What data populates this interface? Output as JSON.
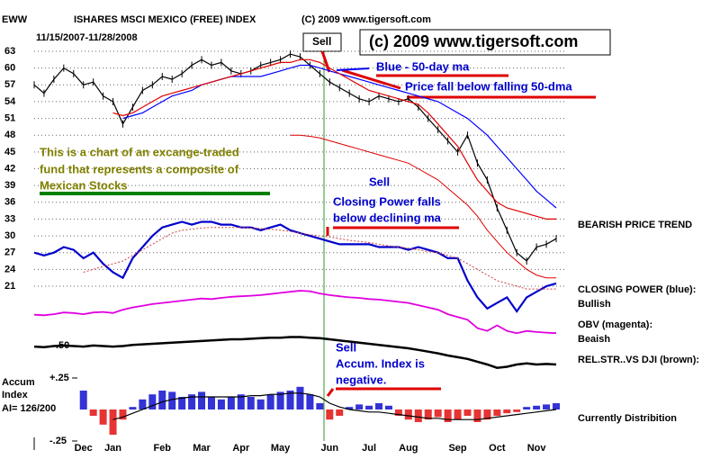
{
  "chart_data": [
    {
      "type": "line",
      "ticker": "EWW",
      "title": "ISHARES MSCI MEXICO (FREE) INDEX",
      "copyright": "(C) 2009 www.tigersoft.com",
      "subtitle": "11/15/2007-11/28/2008",
      "categories": [
        null,
        null,
        null,
        null,
        null,
        "Dec",
        null,
        null,
        "Jan",
        null,
        null,
        null,
        null,
        "Feb",
        null,
        null,
        null,
        "Mar",
        null,
        null,
        null,
        "Apr",
        null,
        null,
        null,
        "May",
        null,
        null,
        null,
        null,
        "Jun",
        null,
        null,
        null,
        "Jul",
        null,
        null,
        null,
        "Aug",
        null,
        null,
        null,
        null,
        "Sep",
        null,
        null,
        null,
        "Oct",
        null,
        null,
        null,
        "Nov",
        null,
        null
      ],
      "ylim": [
        6,
        64.5
      ],
      "yticks": [
        63,
        60,
        57,
        54,
        51,
        48,
        45,
        42,
        39,
        36,
        33,
        30,
        27,
        24,
        21
      ],
      "grid": true,
      "series": [
        {
          "color": "#000000",
          "values": [
            57,
            55.5,
            58,
            60,
            59,
            57,
            57.5,
            55,
            54,
            50,
            53,
            56,
            57,
            58.5,
            58,
            59,
            60.5,
            61.5,
            60.5,
            61,
            59.5,
            59,
            59.5,
            60.5,
            61,
            61.5,
            62.5,
            62,
            60.5,
            59,
            57.5,
            56.5,
            55.5,
            54.5,
            54,
            55,
            54.5,
            54,
            54.5,
            53,
            51,
            49,
            47,
            45,
            48,
            43,
            40,
            35,
            31,
            27,
            25.5,
            28,
            28.5,
            29.5
          ]
        },
        {
          "color": "#0000ff",
          "values": [
            null,
            null,
            null,
            null,
            null,
            null,
            null,
            null,
            null,
            51,
            51.5,
            52,
            53,
            54,
            55,
            55.5,
            56,
            57,
            57.5,
            58,
            58.5,
            58.5,
            58.5,
            58.5,
            59,
            59.5,
            60,
            60.5,
            60.5,
            60,
            59.5,
            59,
            58.5,
            58,
            57.5,
            57,
            56.5,
            56,
            55.5,
            55,
            54.5,
            54,
            53,
            52,
            51,
            49.5,
            48,
            46,
            44,
            42,
            40,
            38,
            36.5,
            35
          ]
        },
        {
          "color": "#e00000",
          "values": [
            null,
            null,
            null,
            null,
            null,
            null,
            null,
            null,
            52,
            51.5,
            52,
            53,
            54,
            55,
            55.5,
            56,
            56.5,
            57,
            57.5,
            58,
            58.5,
            59,
            59.5,
            60,
            60.5,
            61,
            61,
            61.5,
            61.5,
            61,
            60,
            59,
            58,
            57,
            56,
            55.5,
            55,
            54.5,
            54,
            53.5,
            52,
            50,
            48,
            46,
            43,
            40,
            38,
            36,
            35,
            34.5,
            34,
            33.5,
            33,
            33
          ]
        },
        {
          "color": "#e00000",
          "values": [
            null,
            null,
            null,
            null,
            null,
            null,
            null,
            null,
            null,
            null,
            null,
            null,
            null,
            null,
            null,
            null,
            null,
            null,
            null,
            null,
            null,
            null,
            null,
            null,
            null,
            null,
            48,
            48,
            47.8,
            47.5,
            47,
            46.5,
            46,
            45.5,
            45,
            44.5,
            44,
            43.5,
            43,
            42,
            41,
            40,
            38.5,
            37,
            35.5,
            33.5,
            31,
            29,
            27,
            25.5,
            24,
            23,
            22.5,
            22.5
          ]
        },
        {
          "color": "#0000cc",
          "values": [
            27,
            26.5,
            27,
            28,
            27.5,
            26,
            27,
            25,
            23.5,
            22.5,
            26,
            28,
            30,
            31.5,
            32,
            32.5,
            32,
            32.5,
            32.5,
            32,
            32,
            31.5,
            31.5,
            31,
            31.5,
            32,
            31,
            30.5,
            30,
            29.5,
            29,
            28.5,
            28.5,
            28.5,
            28.5,
            28,
            28,
            28,
            27.5,
            28,
            27.5,
            27,
            26,
            26,
            22,
            19,
            17,
            18,
            19,
            16.5,
            19,
            20,
            21,
            21.5
          ]
        },
        {
          "color": "#d04040",
          "values": [
            null,
            null,
            null,
            null,
            null,
            23.5,
            24,
            24.5,
            25,
            25.5,
            26.5,
            27.5,
            28.5,
            29.5,
            30.5,
            31,
            31.2,
            31.4,
            31.5,
            31.5,
            31.5,
            31.5,
            31.4,
            31.3,
            31.2,
            31,
            30.8,
            30.5,
            30.2,
            30,
            29.8,
            29.5,
            29.2,
            29,
            28.8,
            28.5,
            28.2,
            28,
            27.8,
            27.5,
            27.2,
            27,
            26.5,
            26,
            25,
            24,
            23,
            22,
            21.5,
            21,
            20.5,
            20.5,
            20.5,
            20.5
          ]
        },
        {
          "color": "#e000e0",
          "values": [
            15.9,
            15.8,
            16,
            16.3,
            16.2,
            16,
            16.3,
            16.4,
            16.2,
            16.8,
            17.2,
            17.5,
            17.8,
            18,
            18.2,
            18.4,
            18.6,
            18.8,
            18.7,
            18.9,
            19.1,
            19.2,
            19.3,
            19.4,
            19.6,
            19.8,
            20,
            20.2,
            20.1,
            19.7,
            19.4,
            19.2,
            19,
            18.9,
            18.7,
            18.6,
            18.4,
            18.2,
            18,
            17.6,
            17.2,
            16.8,
            16,
            15.5,
            15,
            13.5,
            13,
            14,
            13,
            12.6,
            13,
            12.8,
            12.7,
            12.6
          ]
        },
        {
          "color": "#000000",
          "values": [
            10.2,
            10.1,
            10.3,
            10.4,
            10.3,
            10.2,
            10.4,
            10.3,
            10.2,
            10.3,
            10.5,
            10.6,
            10.7,
            10.8,
            10.9,
            11,
            11.1,
            11.2,
            11.3,
            11.4,
            11.5,
            11.5,
            11.6,
            11.7,
            11.8,
            11.8,
            11.9,
            11.9,
            11.8,
            11.7,
            11.5,
            11.3,
            11.1,
            10.9,
            10.7,
            10.5,
            10.3,
            10.1,
            9.9,
            9.6,
            9.3,
            9,
            8.6,
            8.3,
            8,
            7.5,
            7,
            6.4,
            6.6,
            7,
            7.2,
            7,
            7.1,
            7
          ]
        }
      ]
    },
    {
      "type": "accum",
      "ylim": [
        -0.25,
        0.25
      ],
      "yticks": [
        {
          "value": 0.25,
          "label": "+.25"
        },
        {
          "value": -0.25,
          "label": "-.25"
        }
      ],
      "positive_color": "#0000cc",
      "negative_color": "#e00000",
      "line_color": "#000000",
      "values": [
        null,
        null,
        null,
        null,
        null,
        0.15,
        -0.05,
        -0.12,
        -0.2,
        -0.08,
        0.02,
        0.08,
        0.12,
        0.15,
        0.14,
        0.1,
        0.12,
        0.14,
        0.1,
        0.08,
        0.1,
        0.12,
        0.1,
        0.08,
        0.12,
        0.14,
        0.15,
        0.18,
        0.12,
        0.05,
        -0.08,
        -0.05,
        0.02,
        0.04,
        0.03,
        0.05,
        0.03,
        -0.05,
        -0.08,
        -0.1,
        -0.08,
        -0.06,
        -0.1,
        -0.08,
        -0.05,
        -0.1,
        -0.08,
        -0.05,
        -0.03,
        -0.02,
        0.02,
        0.03,
        0.04,
        0.05
      ],
      "ma": [
        null,
        null,
        null,
        null,
        null,
        null,
        null,
        null,
        -0.08,
        -0.06,
        -0.03,
        0,
        0.03,
        0.06,
        0.08,
        0.09,
        0.1,
        0.1,
        0.1,
        0.1,
        0.1,
        0.1,
        0.11,
        0.11,
        0.12,
        0.12,
        0.13,
        0.13,
        0.12,
        0.1,
        0.05,
        0.02,
        0,
        -0.01,
        -0.02,
        -0.02,
        -0.03,
        -0.04,
        -0.05,
        -0.06,
        -0.07,
        -0.07,
        -0.08,
        -0.08,
        -0.08,
        -0.08,
        -0.07,
        -0.06,
        -0.05,
        -0.04,
        -0.03,
        -0.02,
        -0.01,
        0
      ]
    }
  ],
  "annotations": [
    "Sell",
    "(c) 2009 www.tigersoft.com",
    "Blue - 50-day ma",
    "Price fall below falling 50-dma",
    "This is a chart of an excange-traded",
    "fund that represents a composite of",
    "Mexican Stocks",
    "Sell",
    "Closing Power falls",
    "below declining ma",
    "Sell",
    "Accum. Index is",
    "negative.",
    "BEARISH PRICE TREND",
    "CLOSING POWER (blue):",
    "Bullish",
    "OBV (magenta):",
    "Beaish",
    "REL.STR..VS DJI (brown):",
    "Currently Distribition",
    "Accum",
    "Index",
    "AI= 126/200",
    ".50"
  ]
}
